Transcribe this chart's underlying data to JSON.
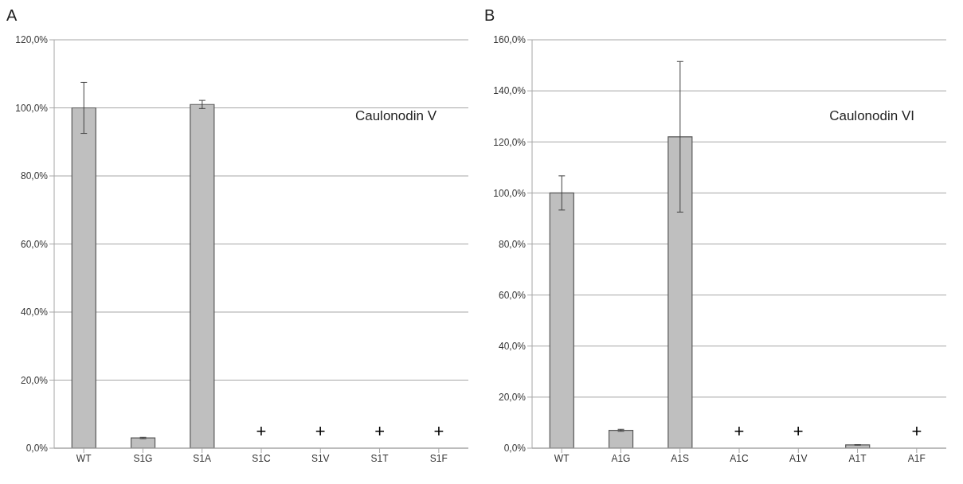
{
  "chart_data": [
    {
      "type": "bar",
      "title": "A",
      "categories": [
        "WT",
        "S1G",
        "S1A",
        "S1C",
        "S1V",
        "S1T",
        "S1F"
      ],
      "values": [
        100,
        3,
        101,
        null,
        null,
        null,
        null
      ],
      "errors": [
        7.5,
        0.2,
        1.2,
        null,
        null,
        null,
        null
      ],
      "color": "#bfbfbf",
      "ylim": [
        0,
        120
      ],
      "yticks": [
        {
          "value": 0,
          "label": "0,0%"
        },
        {
          "value": 20,
          "label": "20,0%"
        },
        {
          "value": 40,
          "label": "40,0%"
        },
        {
          "value": 60,
          "label": "60,0%"
        },
        {
          "value": 80,
          "label": "80,0%"
        },
        {
          "value": 100,
          "label": "100,0%"
        },
        {
          "value": 120,
          "label": "120,0%"
        }
      ],
      "grid": "y",
      "legend": false,
      "annotations": [
        "Caulonodin V",
        "+",
        "+",
        "+",
        "+"
      ]
    },
    {
      "type": "bar",
      "title": "B",
      "categories": [
        "WT",
        "A1G",
        "A1S",
        "A1C",
        "A1V",
        "A1T",
        "A1F"
      ],
      "values": [
        100,
        7,
        122,
        null,
        null,
        1.3,
        null
      ],
      "errors": [
        6.7,
        0.4,
        29.5,
        null,
        null,
        0.1,
        null
      ],
      "color": "#bfbfbf",
      "ylim": [
        0,
        160
      ],
      "yticks": [
        {
          "value": 0,
          "label": "0,0%"
        },
        {
          "value": 20,
          "label": "20,0%"
        },
        {
          "value": 40,
          "label": "40,0%"
        },
        {
          "value": 60,
          "label": "60,0%"
        },
        {
          "value": 80,
          "label": "80,0%"
        },
        {
          "value": 100,
          "label": "100,0%"
        },
        {
          "value": 120,
          "label": "120,0%"
        },
        {
          "value": 140,
          "label": "140,0%"
        },
        {
          "value": 160,
          "label": "160,0%"
        }
      ],
      "grid": "y",
      "legend": false,
      "annotations": [
        "Caulonodin VI",
        "+",
        "+",
        "+"
      ]
    }
  ]
}
